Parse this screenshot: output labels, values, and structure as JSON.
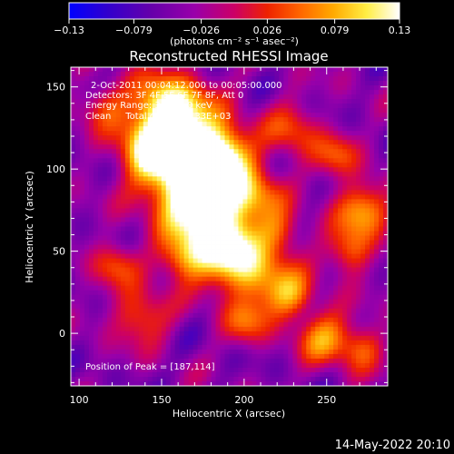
{
  "chart_data": {
    "type": "heatmap",
    "title": "Reconstructed RHESSI Image",
    "xlabel": "Heliocentric X (arcsec)",
    "ylabel": "Heliocentric Y (arcsec)",
    "xlim": [
      95,
      287
    ],
    "ylim": [
      -32,
      162
    ],
    "xticks": [
      100,
      150,
      200,
      250
    ],
    "yticks": [
      0,
      50,
      100,
      150
    ],
    "colorbar": {
      "label": "(photons cm⁻² s⁻¹ asec⁻²)",
      "range": [
        -0.13,
        0.13
      ],
      "ticks": [
        "−0.13",
        "−0.079",
        "−0.026",
        "0.026",
        "0.079",
        "0.13"
      ],
      "colormap": [
        "#0000ff",
        "#3300cc",
        "#6600aa",
        "#9900aa",
        "#cc0066",
        "#ee2200",
        "#ff6600",
        "#ffaa00",
        "#ffee44",
        "#ffffff"
      ]
    },
    "annotations": [
      "2-Oct-2011 00:04:12.000 to 00:05:00.000",
      "Detectors: 3F 4F 5F 6F 7F 8F, Att 0",
      "Energy Range: 3.0 - 6.0 keV",
      "Clean     Total counts: 7.33E+03"
    ],
    "peak_label": "Position of Peak = [187,114]",
    "peak": [
      187,
      114
    ]
  },
  "timestamp": "14-May-2022 20:10"
}
